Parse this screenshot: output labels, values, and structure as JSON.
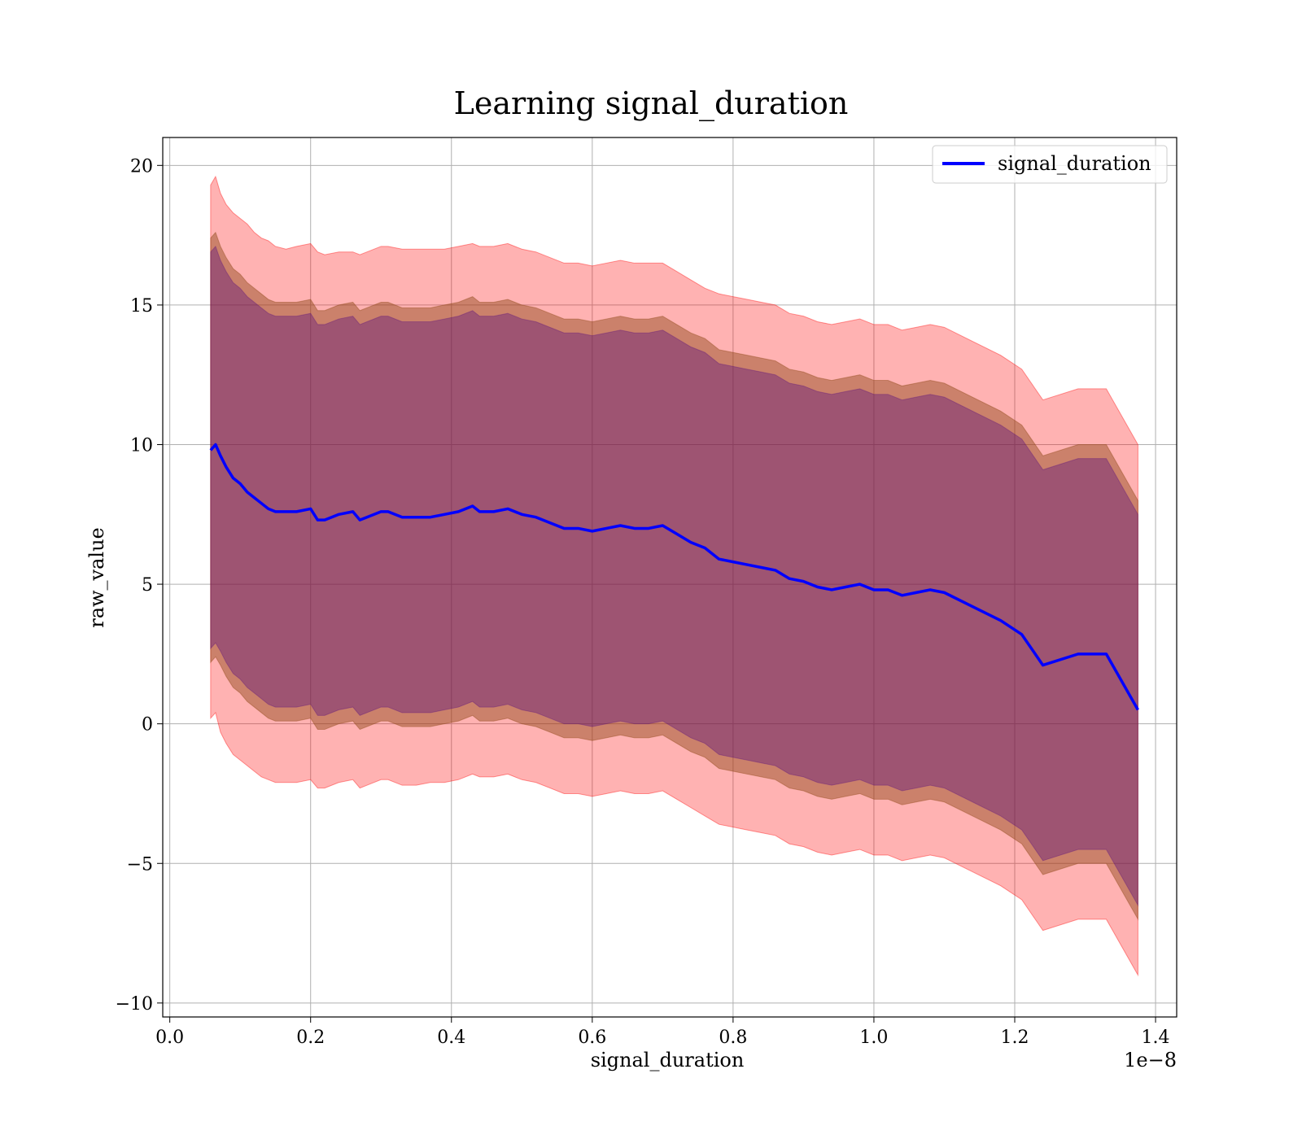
{
  "chart_data": {
    "type": "line",
    "title": "Learning signal_duration",
    "xlabel": "signal_duration",
    "ylabel": "raw_value",
    "x_offset_label": "1e−8",
    "xlim": [
      -0.01,
      1.43
    ],
    "ylim": [
      -10.5,
      21
    ],
    "x_ticks": [
      0.0,
      0.2,
      0.4,
      0.6,
      0.8,
      1.0,
      1.2,
      1.4
    ],
    "x_tick_labels": [
      "0.0",
      "0.2",
      "0.4",
      "0.6",
      "0.8",
      "1.0",
      "1.2",
      "1.4"
    ],
    "y_ticks": [
      -10,
      -5,
      0,
      5,
      10,
      15,
      20
    ],
    "y_tick_labels": [
      "−10",
      "−5",
      "0",
      "5",
      "10",
      "15",
      "20"
    ],
    "grid": true,
    "legend": {
      "placement": "top-right",
      "entries": [
        "signal_duration"
      ]
    },
    "colors": {
      "mean_line": "#0000ff",
      "band_outer": "#ff0000",
      "band_middle": "#8b4513",
      "band_inner": "#4b0082"
    },
    "x": [
      0.058,
      0.065,
      0.072,
      0.08,
      0.09,
      0.1,
      0.11,
      0.12,
      0.13,
      0.14,
      0.15,
      0.165,
      0.18,
      0.2,
      0.21,
      0.22,
      0.24,
      0.26,
      0.27,
      0.28,
      0.3,
      0.31,
      0.33,
      0.35,
      0.37,
      0.39,
      0.41,
      0.43,
      0.44,
      0.46,
      0.48,
      0.5,
      0.52,
      0.54,
      0.56,
      0.58,
      0.6,
      0.62,
      0.64,
      0.66,
      0.68,
      0.7,
      0.72,
      0.74,
      0.76,
      0.78,
      0.8,
      0.82,
      0.84,
      0.86,
      0.88,
      0.9,
      0.92,
      0.94,
      0.96,
      0.98,
      1.0,
      1.02,
      1.04,
      1.06,
      1.08,
      1.1,
      1.14,
      1.18,
      1.21,
      1.24,
      1.29,
      1.33,
      1.375
    ],
    "series": [
      {
        "name": "signal_duration",
        "mean": [
          9.8,
          10.0,
          9.6,
          9.2,
          8.8,
          8.6,
          8.3,
          8.1,
          7.9,
          7.7,
          7.6,
          7.6,
          7.6,
          7.7,
          7.3,
          7.3,
          7.5,
          7.6,
          7.3,
          7.4,
          7.6,
          7.6,
          7.4,
          7.4,
          7.4,
          7.5,
          7.6,
          7.8,
          7.6,
          7.6,
          7.7,
          7.5,
          7.4,
          7.2,
          7.0,
          7.0,
          6.9,
          7.0,
          7.1,
          7.0,
          7.0,
          7.1,
          6.8,
          6.5,
          6.3,
          5.9,
          5.8,
          5.7,
          5.6,
          5.5,
          5.2,
          5.1,
          4.9,
          4.8,
          4.9,
          5.0,
          4.8,
          4.8,
          4.6,
          4.7,
          4.8,
          4.7,
          4.2,
          3.7,
          3.2,
          2.1,
          2.5,
          2.5,
          0.5
        ],
        "band_outer_upper": [
          19.3,
          19.6,
          19.0,
          18.6,
          18.3,
          18.1,
          17.9,
          17.6,
          17.4,
          17.3,
          17.1,
          17.0,
          17.1,
          17.2,
          16.9,
          16.8,
          16.9,
          16.9,
          16.8,
          16.9,
          17.1,
          17.1,
          17.0,
          17.0,
          17.0,
          17.0,
          17.1,
          17.2,
          17.1,
          17.1,
          17.2,
          17.0,
          16.9,
          16.7,
          16.5,
          16.5,
          16.4,
          16.5,
          16.6,
          16.5,
          16.5,
          16.5,
          16.2,
          15.9,
          15.6,
          15.4,
          15.3,
          15.2,
          15.1,
          15.0,
          14.7,
          14.6,
          14.4,
          14.3,
          14.4,
          14.5,
          14.3,
          14.3,
          14.1,
          14.2,
          14.3,
          14.2,
          13.7,
          13.2,
          12.7,
          11.6,
          12.0,
          12.0,
          10.0
        ],
        "band_outer_lower": [
          0.2,
          0.4,
          -0.3,
          -0.7,
          -1.1,
          -1.3,
          -1.5,
          -1.7,
          -1.9,
          -2.0,
          -2.1,
          -2.1,
          -2.1,
          -2.0,
          -2.3,
          -2.3,
          -2.1,
          -2.0,
          -2.3,
          -2.2,
          -2.0,
          -2.0,
          -2.2,
          -2.2,
          -2.1,
          -2.1,
          -2.0,
          -1.8,
          -1.9,
          -1.9,
          -1.8,
          -2.0,
          -2.1,
          -2.3,
          -2.5,
          -2.5,
          -2.6,
          -2.5,
          -2.4,
          -2.5,
          -2.5,
          -2.4,
          -2.7,
          -3.0,
          -3.3,
          -3.6,
          -3.7,
          -3.8,
          -3.9,
          -4.0,
          -4.3,
          -4.4,
          -4.6,
          -4.7,
          -4.6,
          -4.5,
          -4.7,
          -4.7,
          -4.9,
          -4.8,
          -4.7,
          -4.8,
          -5.3,
          -5.8,
          -6.3,
          -7.4,
          -7.0,
          -7.0,
          -9.0
        ],
        "band_middle_upper": [
          17.4,
          17.6,
          17.1,
          16.7,
          16.3,
          16.1,
          15.8,
          15.6,
          15.4,
          15.2,
          15.1,
          15.1,
          15.1,
          15.2,
          14.8,
          14.8,
          15.0,
          15.1,
          14.8,
          14.9,
          15.1,
          15.1,
          14.9,
          14.9,
          14.9,
          15.0,
          15.1,
          15.3,
          15.1,
          15.1,
          15.2,
          15.0,
          14.9,
          14.7,
          14.5,
          14.5,
          14.4,
          14.5,
          14.6,
          14.5,
          14.5,
          14.6,
          14.3,
          14.0,
          13.8,
          13.4,
          13.3,
          13.2,
          13.1,
          13.0,
          12.7,
          12.6,
          12.4,
          12.3,
          12.4,
          12.5,
          12.3,
          12.3,
          12.1,
          12.2,
          12.3,
          12.2,
          11.7,
          11.2,
          10.7,
          9.6,
          10.0,
          10.0,
          8.0
        ],
        "band_middle_lower": [
          2.2,
          2.4,
          2.1,
          1.7,
          1.3,
          1.1,
          0.8,
          0.6,
          0.4,
          0.2,
          0.1,
          0.1,
          0.1,
          0.2,
          -0.2,
          -0.2,
          0.0,
          0.1,
          -0.2,
          -0.1,
          0.1,
          0.1,
          -0.1,
          -0.1,
          -0.1,
          0.0,
          0.1,
          0.3,
          0.1,
          0.1,
          0.2,
          0.0,
          -0.1,
          -0.3,
          -0.5,
          -0.5,
          -0.6,
          -0.5,
          -0.4,
          -0.5,
          -0.5,
          -0.4,
          -0.7,
          -1.0,
          -1.2,
          -1.6,
          -1.7,
          -1.8,
          -1.9,
          -2.0,
          -2.3,
          -2.4,
          -2.6,
          -2.7,
          -2.6,
          -2.5,
          -2.7,
          -2.7,
          -2.9,
          -2.8,
          -2.7,
          -2.8,
          -3.3,
          -3.8,
          -4.3,
          -5.4,
          -5.0,
          -5.0,
          -7.0
        ],
        "band_inner_upper": [
          16.9,
          17.1,
          16.6,
          16.2,
          15.8,
          15.6,
          15.3,
          15.1,
          14.9,
          14.7,
          14.6,
          14.6,
          14.6,
          14.7,
          14.3,
          14.3,
          14.5,
          14.6,
          14.3,
          14.4,
          14.6,
          14.6,
          14.4,
          14.4,
          14.4,
          14.5,
          14.6,
          14.8,
          14.6,
          14.6,
          14.7,
          14.5,
          14.4,
          14.2,
          14.0,
          14.0,
          13.9,
          14.0,
          14.1,
          14.0,
          14.0,
          14.1,
          13.8,
          13.5,
          13.3,
          12.9,
          12.8,
          12.7,
          12.6,
          12.5,
          12.2,
          12.1,
          11.9,
          11.8,
          11.9,
          12.0,
          11.8,
          11.8,
          11.6,
          11.7,
          11.8,
          11.7,
          11.2,
          10.7,
          10.2,
          9.1,
          9.5,
          9.5,
          7.5
        ],
        "band_inner_lower": [
          2.7,
          2.9,
          2.6,
          2.2,
          1.8,
          1.6,
          1.3,
          1.1,
          0.9,
          0.7,
          0.6,
          0.6,
          0.6,
          0.7,
          0.3,
          0.3,
          0.5,
          0.6,
          0.3,
          0.4,
          0.6,
          0.6,
          0.4,
          0.4,
          0.4,
          0.5,
          0.6,
          0.8,
          0.6,
          0.6,
          0.7,
          0.5,
          0.4,
          0.2,
          0.0,
          0.0,
          -0.1,
          0.0,
          0.1,
          0.0,
          0.0,
          0.1,
          -0.2,
          -0.5,
          -0.7,
          -1.1,
          -1.2,
          -1.3,
          -1.4,
          -1.5,
          -1.8,
          -1.9,
          -2.1,
          -2.2,
          -2.1,
          -2.0,
          -2.2,
          -2.2,
          -2.4,
          -2.3,
          -2.2,
          -2.3,
          -2.8,
          -3.3,
          -3.8,
          -4.9,
          -4.5,
          -4.5,
          -6.5
        ]
      }
    ]
  }
}
